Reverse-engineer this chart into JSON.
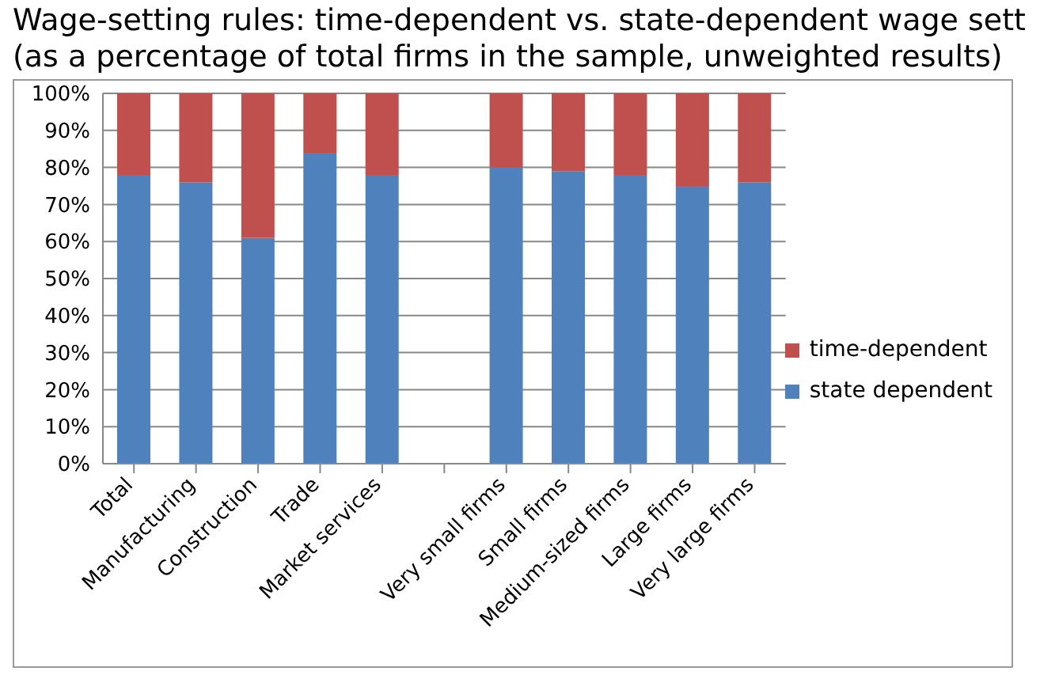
{
  "chart_data": {
    "type": "bar",
    "title": "Wage-setting rules: time-dependent vs. state-dependent wage sett",
    "subtitle": "(as a percentage of total firms in the sample, unweighted results)",
    "categories": [
      "Total",
      "Manufacturing",
      "Construction",
      "Trade",
      "Market services",
      null,
      "Very small firms",
      "Small firms",
      "Medium-sized firms",
      "Large firms",
      "Very large firms"
    ],
    "series": [
      {
        "name": "state dependent",
        "color": "#4f81bd",
        "values": [
          78,
          76,
          61,
          84,
          78,
          null,
          80,
          79,
          78,
          75,
          76
        ]
      },
      {
        "name": "time-dependent",
        "color": "#c0504d",
        "values": [
          22,
          24,
          39,
          16,
          22,
          null,
          20,
          21,
          22,
          25,
          24
        ]
      }
    ],
    "stacked": true,
    "ylim": [
      0,
      100
    ],
    "yticks": [
      {
        "value": 0,
        "label": "0%"
      },
      {
        "value": 10,
        "label": "10%"
      },
      {
        "value": 20,
        "label": "20%"
      },
      {
        "value": 30,
        "label": "30%"
      },
      {
        "value": 40,
        "label": "40%"
      },
      {
        "value": 50,
        "label": "50%"
      },
      {
        "value": 60,
        "label": "60%"
      },
      {
        "value": 70,
        "label": "70%"
      },
      {
        "value": 80,
        "label": "80%"
      },
      {
        "value": 90,
        "label": "90%"
      },
      {
        "value": 100,
        "label": "100%"
      }
    ],
    "grid": "y",
    "legend": "right"
  }
}
